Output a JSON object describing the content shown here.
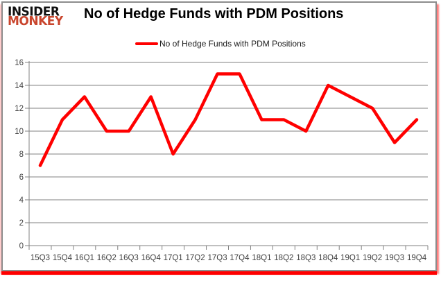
{
  "header": {
    "logo_line1": "INSIDER",
    "logo_line2": "MONKEY",
    "title": "No of Hedge Funds with PDM Positions"
  },
  "legend": {
    "label": "No of Hedge Funds with PDM Positions"
  },
  "chart_data": {
    "type": "line",
    "title": "No of Hedge Funds with PDM Positions",
    "categories": [
      "15Q3",
      "15Q4",
      "16Q1",
      "16Q2",
      "16Q3",
      "16Q4",
      "17Q1",
      "17Q2",
      "17Q3",
      "17Q4",
      "18Q1",
      "18Q2",
      "18Q3",
      "18Q4",
      "19Q1",
      "19Q2",
      "19Q3",
      "19Q4"
    ],
    "series": [
      {
        "name": "No of Hedge Funds with PDM Positions",
        "values": [
          7,
          11,
          13,
          10,
          10,
          13,
          8,
          11,
          15,
          15,
          11,
          11,
          10,
          14,
          13,
          12,
          9,
          11
        ]
      }
    ],
    "ylim": [
      0,
      16
    ],
    "y_ticks": [
      0,
      2,
      4,
      6,
      8,
      10,
      12,
      14,
      16
    ],
    "xlabel": "",
    "ylabel": "",
    "grid": true,
    "legend_position": "top",
    "line_color": "#ff0000"
  },
  "colors": {
    "line": "#ff0000",
    "logo_red": "#c9462e",
    "grid": "#808080",
    "axis_text": "#3f3f3f",
    "frame_border": "#8c8c8c",
    "frame_shadow": "#ff0000"
  }
}
